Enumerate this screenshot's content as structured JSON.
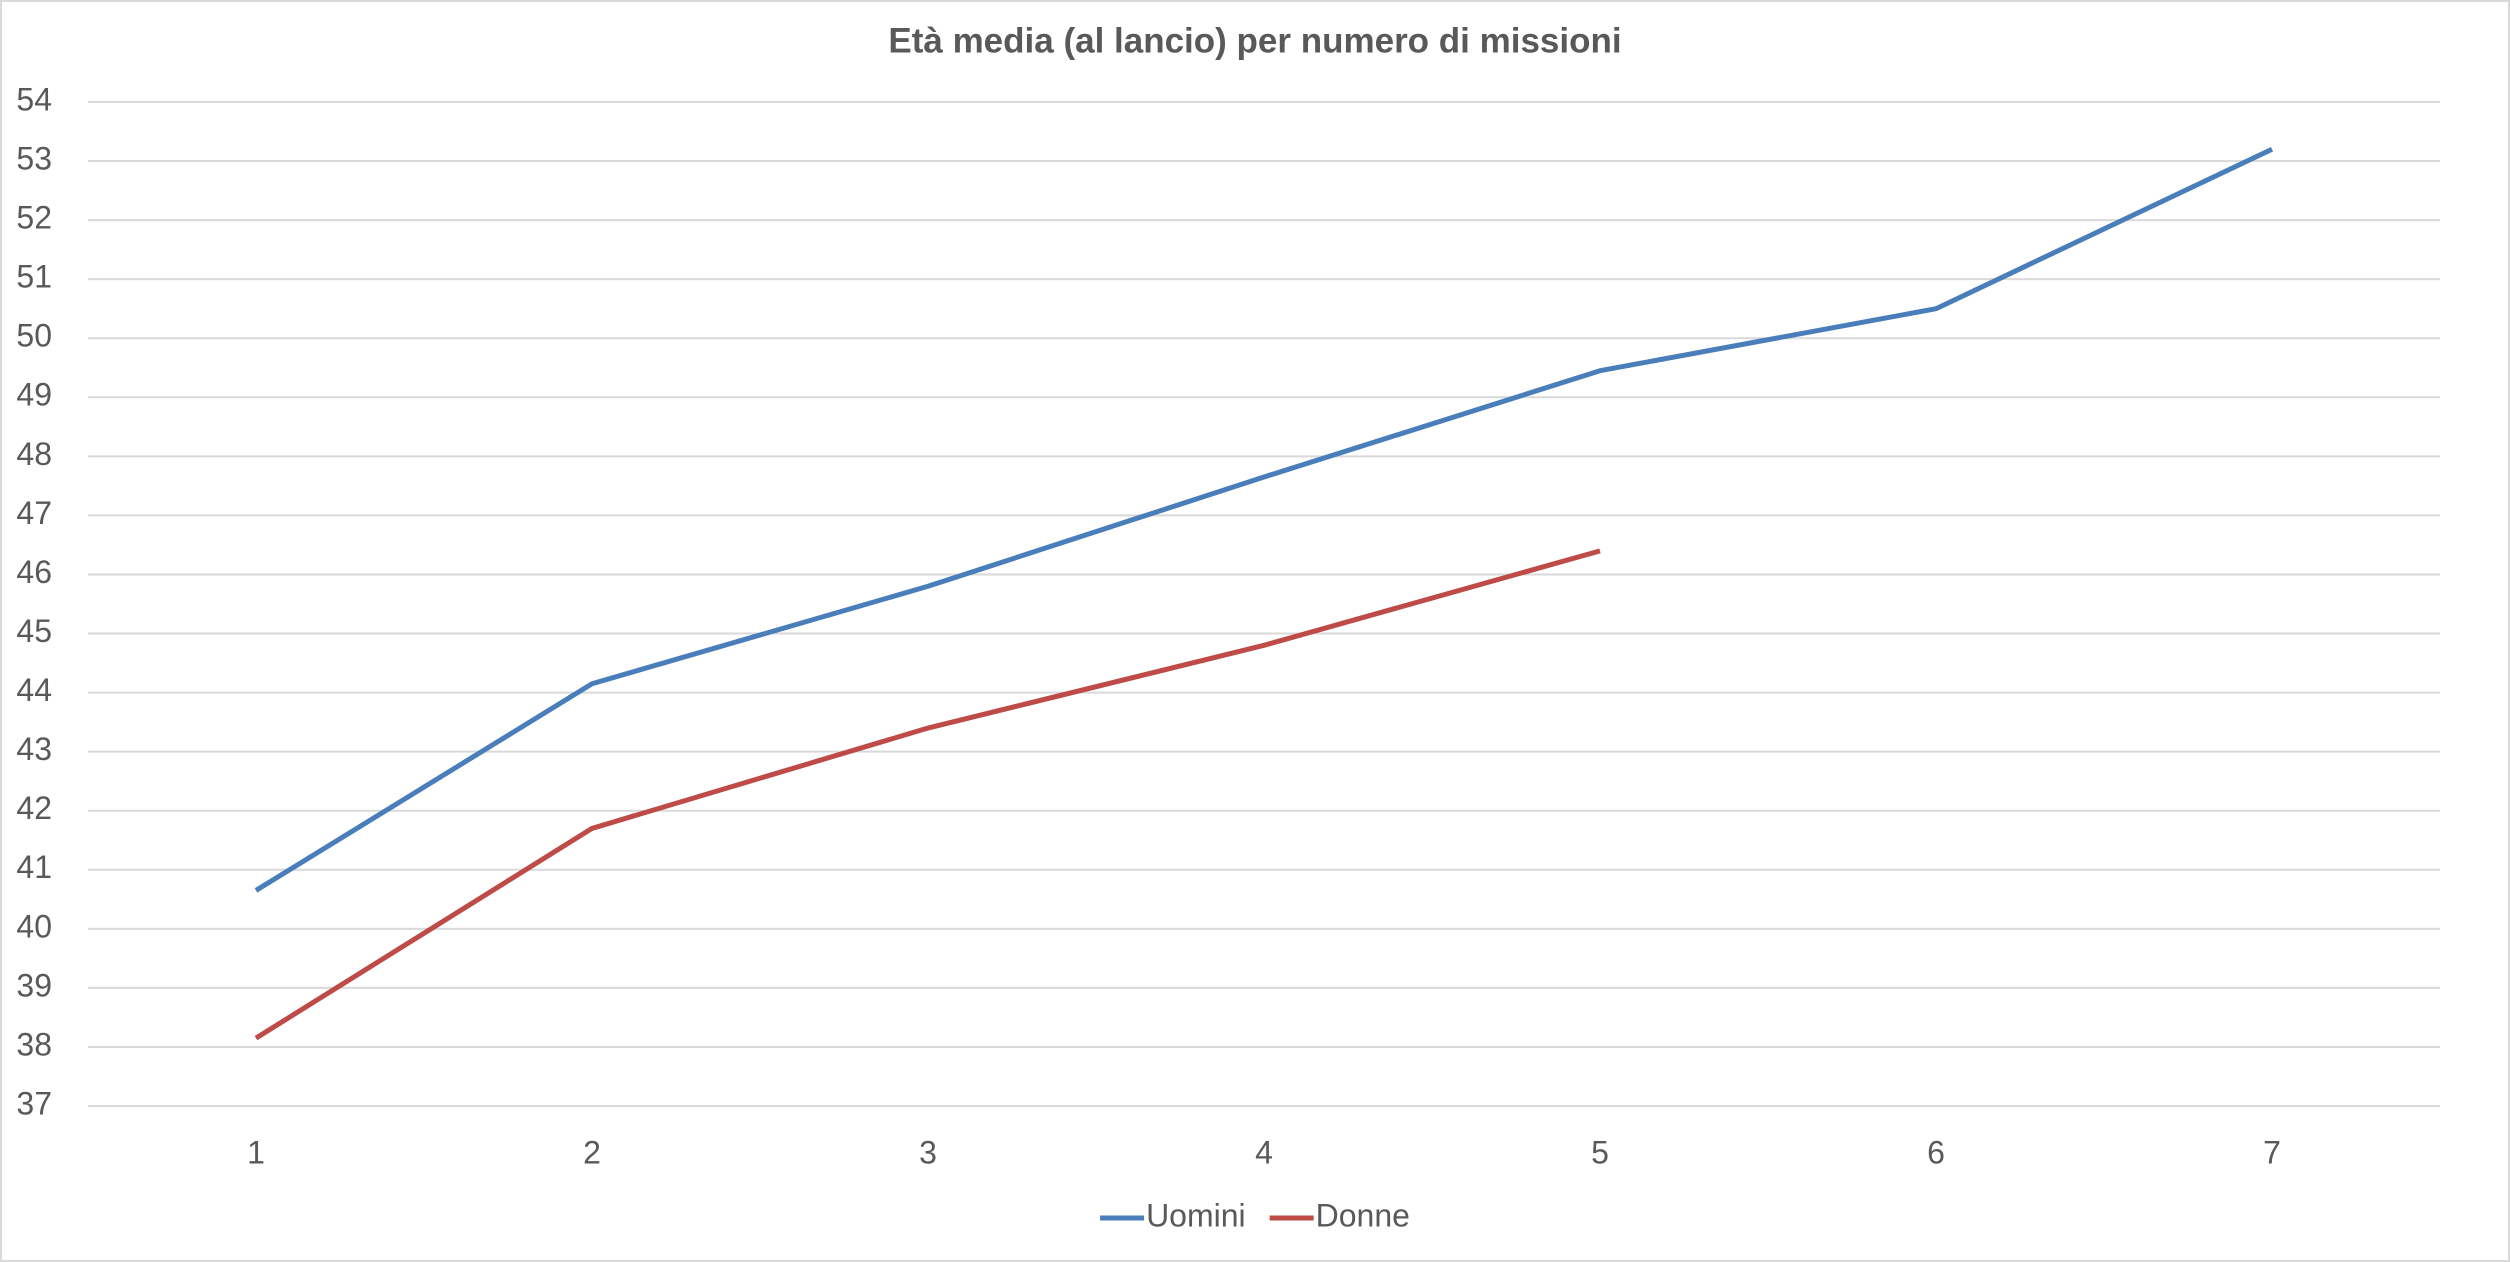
{
  "chart_data": {
    "type": "line",
    "title": "Età media (al lancio) per numero di missioni",
    "categories": [
      "1",
      "2",
      "3",
      "4",
      "5",
      "6",
      "7"
    ],
    "series": [
      {
        "name": "Uomini",
        "color": "#4a7ebb",
        "values": [
          40.65,
          44.15,
          45.8,
          47.65,
          49.45,
          50.5,
          53.2
        ]
      },
      {
        "name": "Donne",
        "color": "#be4b48",
        "values": [
          38.15,
          41.7,
          43.4,
          44.8,
          46.4,
          null,
          null
        ]
      }
    ],
    "ylim": [
      37,
      54
    ],
    "yticks": [
      37,
      38,
      39,
      40,
      41,
      42,
      43,
      44,
      45,
      46,
      47,
      48,
      49,
      50,
      51,
      52,
      53,
      54
    ],
    "grid": true,
    "legend": "bottom"
  }
}
